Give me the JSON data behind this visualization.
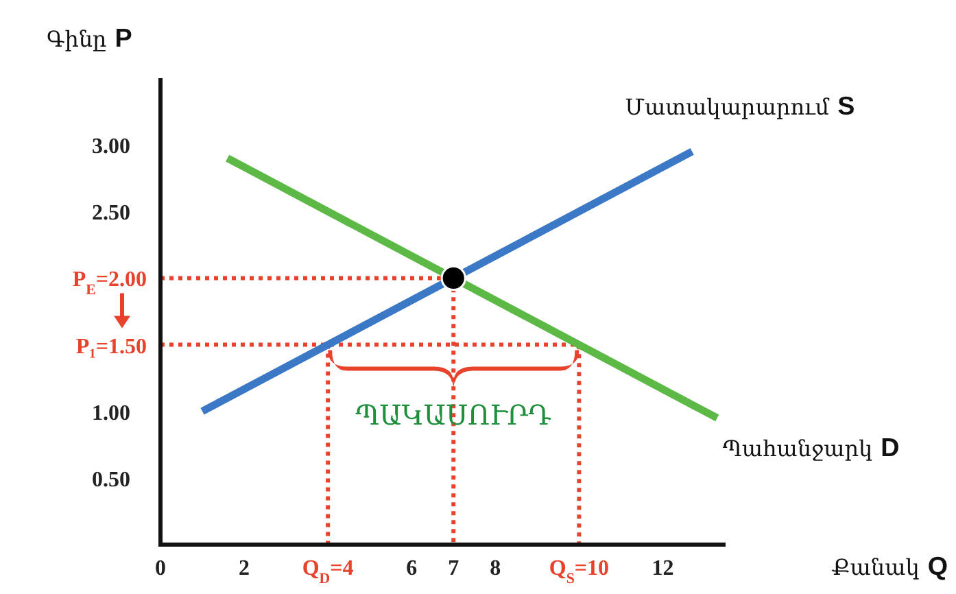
{
  "chart_data": {
    "type": "line",
    "xlabel": "Քանակ Q",
    "ylabel": "Գինը P",
    "xlim": [
      0,
      13.5
    ],
    "ylim": [
      0,
      3.5
    ],
    "xticks": [
      0,
      2,
      {
        "value": 4,
        "label": "Q$_{D}$=4"
      },
      6,
      7,
      8,
      {
        "value": 10,
        "label": "Q$_{S}$=10"
      },
      12
    ],
    "yticks": [
      {
        "value": 0.5,
        "label": "0.50"
      },
      {
        "value": 1,
        "label": "1.00"
      },
      {
        "value": 1.5,
        "label": "P₁=1.50"
      },
      {
        "value": 2,
        "label": "P$_{E}$=2.00"
      },
      {
        "value": 2.5,
        "label": "2.50"
      },
      {
        "value": 3,
        "label": "3.00"
      }
    ],
    "annotations": [
      {
        "text": "ՊԱԿԱՍՈՒՐԴ",
        "x": 7,
        "y": 1.5
      }
    ],
    "series": [
      {
        "color": "#e8412c",
        "line_style": "dotted",
        "x": [
          0,
          7,
          7
        ],
        "values": [
          2,
          2,
          0
        ]
      },
      {
        "color": "#e8412c",
        "line_style": "dotted",
        "x": [
          0,
          10,
          10
        ],
        "values": [
          1.5,
          1.5,
          0
        ]
      },
      {
        "color": "#e8412c",
        "line_style": "dotted",
        "x": [
          4,
          4
        ],
        "values": [
          1.5,
          0
        ]
      },
      {
        "name": "Մատակարարում S",
        "color": "#3b78c6",
        "x": [
          1,
          12.7
        ],
        "values": [
          1,
          2.95
        ]
      },
      {
        "name": "Պահանջարկ D",
        "color": "#5cb946",
        "x": [
          1.6,
          13.3
        ],
        "values": [
          2.9,
          0.95
        ]
      },
      {
        "type": "scatter",
        "color": "#000000",
        "marker": "circle",
        "x": [
          7
        ],
        "values": [
          2
        ]
      }
    ]
  }
}
